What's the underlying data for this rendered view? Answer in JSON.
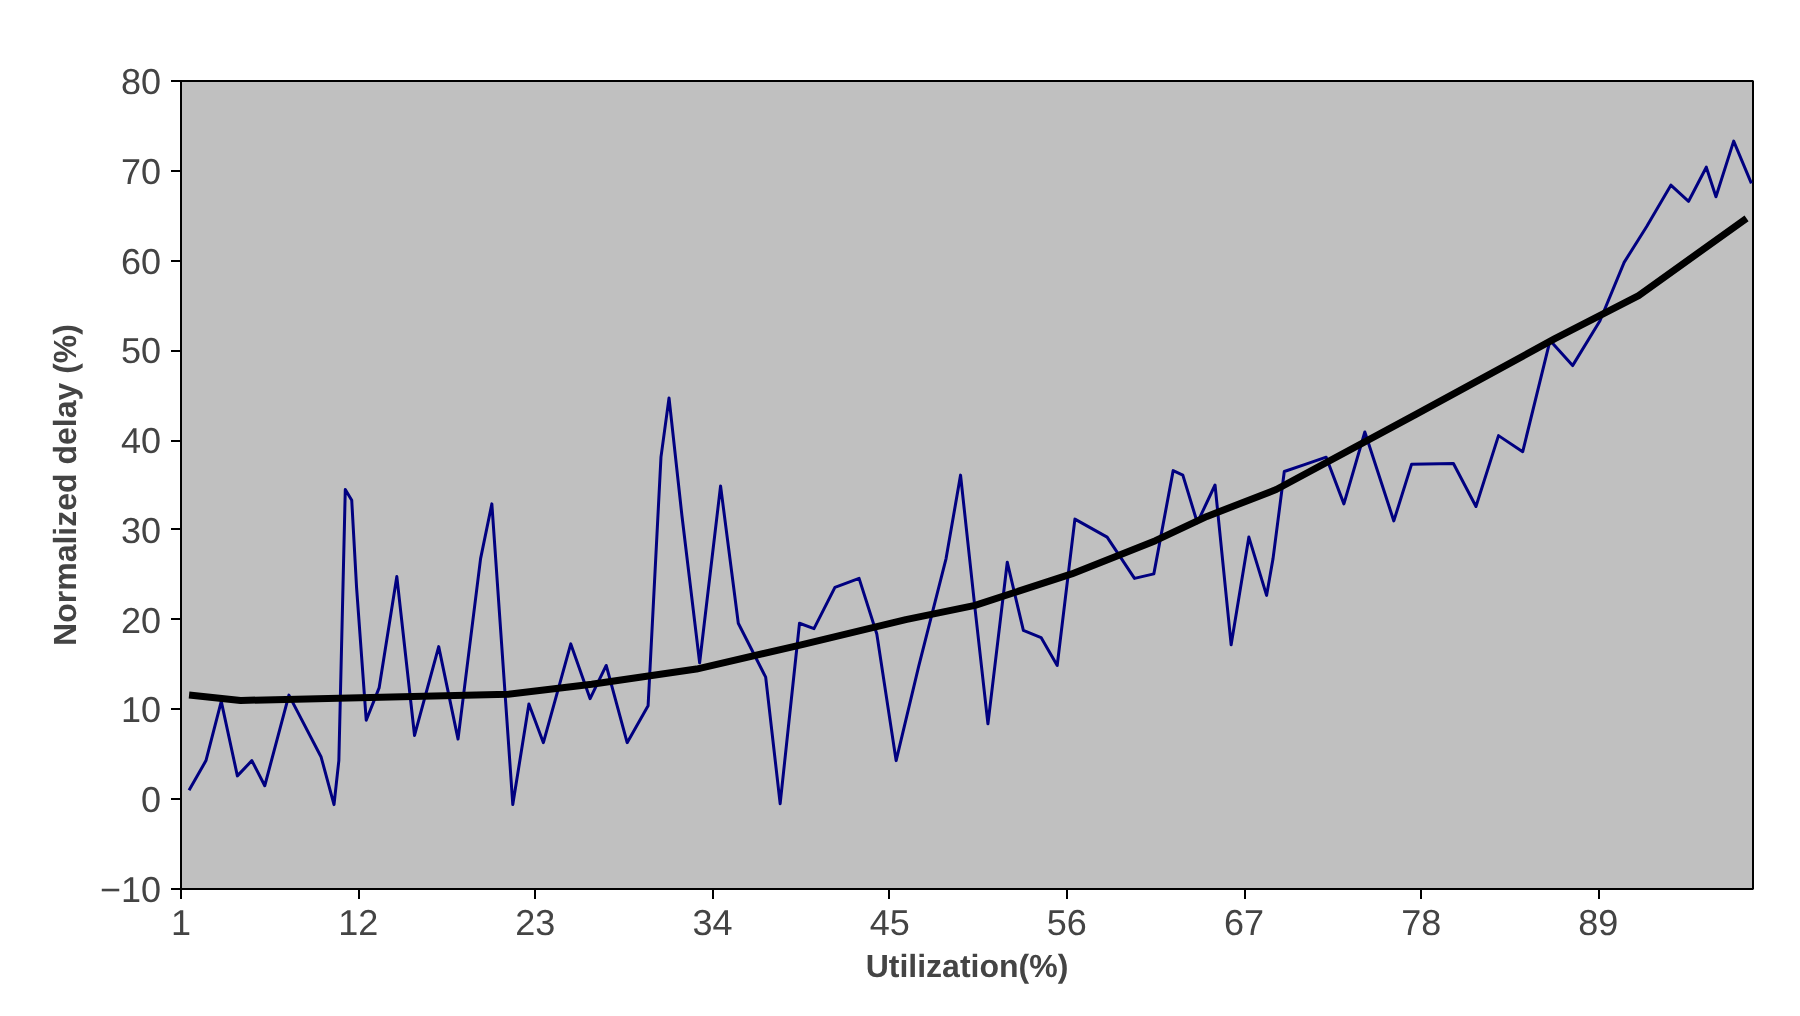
{
  "chart_data": {
    "type": "line",
    "xlabel": "Utilization(%)",
    "ylabel": "Normalized delay (%)",
    "xlim": [
      1,
      98.6
    ],
    "ylim": [
      -10,
      80
    ],
    "xticks": [
      1,
      12,
      23,
      34,
      45,
      56,
      67,
      78,
      89
    ],
    "yticks": [
      -10,
      0,
      10,
      20,
      30,
      40,
      50,
      60,
      70,
      80
    ],
    "grid": false,
    "marker": "none",
    "line_style": "solid",
    "series": [
      {
        "color": "#000080",
        "x": [
          1.5,
          2.55,
          3.5,
          4.5,
          5.4,
          6.2,
          7.7,
          9.7,
          10.5,
          10.8,
          11.2,
          11.6,
          11.9,
          12.5,
          13.3,
          14.4,
          15.5,
          17.0,
          18.2,
          19.6,
          20.3,
          21.6,
          22.6,
          23.5,
          25.2,
          26.4,
          27.4,
          28.7,
          30.0,
          30.8,
          31.3,
          32.1,
          33.2,
          34.5,
          35.6,
          37.3,
          38.2,
          39.4,
          40.3,
          41.6,
          43.1,
          44.2,
          45.4,
          46.8,
          48.5,
          49.4,
          50.3,
          51.1,
          52.3,
          53.3,
          54.4,
          55.4,
          56.5,
          58.5,
          60.2,
          61.4,
          62.6,
          63.2,
          64.1,
          65.2,
          66.2,
          67.3,
          68.4,
          68.8,
          69.5,
          70.8,
          72.1,
          73.2,
          74.5,
          76.3,
          77.4,
          80.0,
          81.4,
          82.8,
          84.3,
          86.0,
          87.4,
          89.1,
          90.6,
          92.0,
          93.5,
          94.6,
          95.7,
          96.3,
          97.4,
          98.5
        ],
        "values": [
          1.0,
          4.3,
          10.9,
          2.6,
          4.3,
          1.5,
          11.6,
          4.7,
          -0.6,
          4.3,
          34.5,
          33.3,
          23.6,
          8.8,
          12.4,
          24.8,
          7.1,
          17.0,
          6.7,
          26.8,
          32.9,
          -0.6,
          10.6,
          6.3,
          17.3,
          11.2,
          14.9,
          6.3,
          10.4,
          38.1,
          44.7,
          31.6,
          15.2,
          34.9,
          19.6,
          13.6,
          -0.5,
          19.6,
          19.0,
          23.6,
          24.6,
          18.4,
          4.3,
          14.8,
          26.8,
          36.1,
          21.2,
          8.4,
          26.4,
          18.8,
          18.0,
          14.9,
          31.2,
          29.2,
          24.6,
          25.1,
          36.6,
          36.1,
          30.8,
          35.0,
          17.2,
          29.2,
          22.7,
          26.8,
          36.5,
          37.3,
          38.1,
          32.9,
          40.9,
          31.0,
          37.3,
          37.4,
          32.6,
          40.5,
          38.7,
          51.1,
          48.3,
          53.3,
          59.8,
          63.8,
          68.4,
          66.6,
          70.4,
          67.1,
          73.3,
          68.6
        ]
      },
      {
        "color": "#000000",
        "x": [
          1.5,
          4.7,
          21.3,
          26.5,
          33.0,
          39.5,
          46.0,
          50.3,
          56.3,
          61.5,
          64.7,
          69.0,
          77.7,
          86.3,
          91.5,
          98.2
        ],
        "values": [
          11.6,
          11.0,
          11.7,
          12.8,
          14.5,
          17.2,
          20.0,
          21.6,
          25.1,
          28.8,
          31.5,
          34.5,
          42.9,
          51.3,
          56.1,
          64.7
        ]
      }
    ]
  }
}
